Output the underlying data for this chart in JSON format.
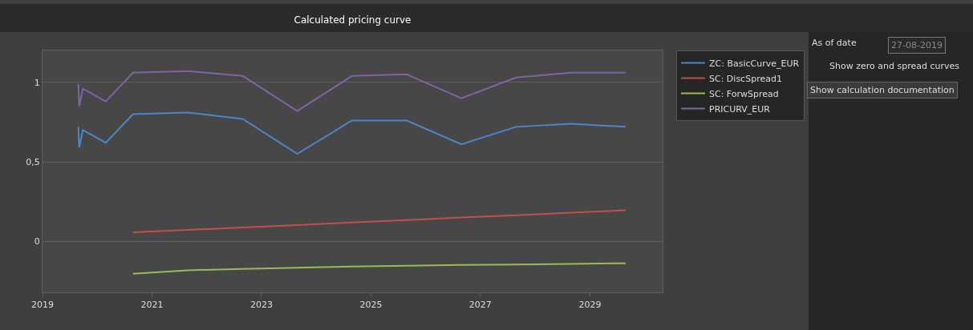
{
  "chart_data": {
    "type": "line",
    "title": "Calculated pricing curve",
    "xlim": [
      "2019",
      "2030-05"
    ],
    "xticks": [
      "2019",
      "2021",
      "2023",
      "2025",
      "2027",
      "2029"
    ],
    "ylim": [
      -0.32,
      1.2
    ],
    "yticks": [
      0,
      {
        "value": 0.5,
        "label": "0,5"
      },
      1
    ],
    "grid": "y",
    "legend": "top right",
    "series": [
      {
        "name": "ZC: BasicCurve_EUR",
        "color": "#4a86c8",
        "x": [
          "2019-08-28",
          "2019-09-03",
          "2019-09-27",
          "2020-02-27",
          "2020-08-27",
          "2021-08-27",
          "2022-08-29",
          "2023-08-28",
          "2024-08-27",
          "2025-08-27",
          "2026-08-27",
          "2027-08-27",
          "2028-08-28",
          "2029-08-27"
        ],
        "values": [
          0.72,
          0.59,
          0.7,
          0.62,
          0.8,
          0.81,
          0.77,
          0.55,
          0.76,
          0.76,
          0.61,
          0.72,
          0.74,
          0.72
        ]
      },
      {
        "name": "SC: DiscSpread1",
        "color": "#c0504d",
        "x": [
          "2020-08-27",
          "2021-08-27",
          "2022-08-29",
          "2023-08-28",
          "2024-08-27",
          "2025-08-27",
          "2026-08-27",
          "2027-08-27",
          "2028-08-28",
          "2029-08-27"
        ],
        "values": [
          0.057,
          0.072,
          0.088,
          0.103,
          0.119,
          0.134,
          0.15,
          0.165,
          0.181,
          0.196
        ]
      },
      {
        "name": "SC: ForwSpread",
        "color": "#9bbb59",
        "x": [
          "2020-08-27",
          "2021-08-27",
          "2022-08-29",
          "2023-08-28",
          "2024-08-27",
          "2025-08-27",
          "2026-08-27",
          "2027-08-27",
          "2028-08-28",
          "2029-08-27"
        ],
        "values": [
          -0.203,
          -0.181,
          -0.173,
          -0.165,
          -0.158,
          -0.153,
          -0.148,
          -0.145,
          -0.141,
          -0.137
        ]
      },
      {
        "name": "PRICURV_EUR",
        "color": "#8064a2",
        "x": [
          "2019-08-28",
          "2019-09-03",
          "2019-09-27",
          "2020-02-27",
          "2020-08-27",
          "2021-08-27",
          "2022-08-29",
          "2023-08-28",
          "2024-08-27",
          "2025-08-27",
          "2026-08-27",
          "2027-08-27",
          "2028-08-28",
          "2029-08-27"
        ],
        "values": [
          0.99,
          0.85,
          0.96,
          0.88,
          1.06,
          1.07,
          1.04,
          0.82,
          1.04,
          1.05,
          0.9,
          1.03,
          1.06,
          1.06
        ]
      }
    ],
    "annotations": [
      "As of date",
      "27-08-2019",
      "Show zero and spread curves",
      "Show calculation documentation"
    ]
  }
}
